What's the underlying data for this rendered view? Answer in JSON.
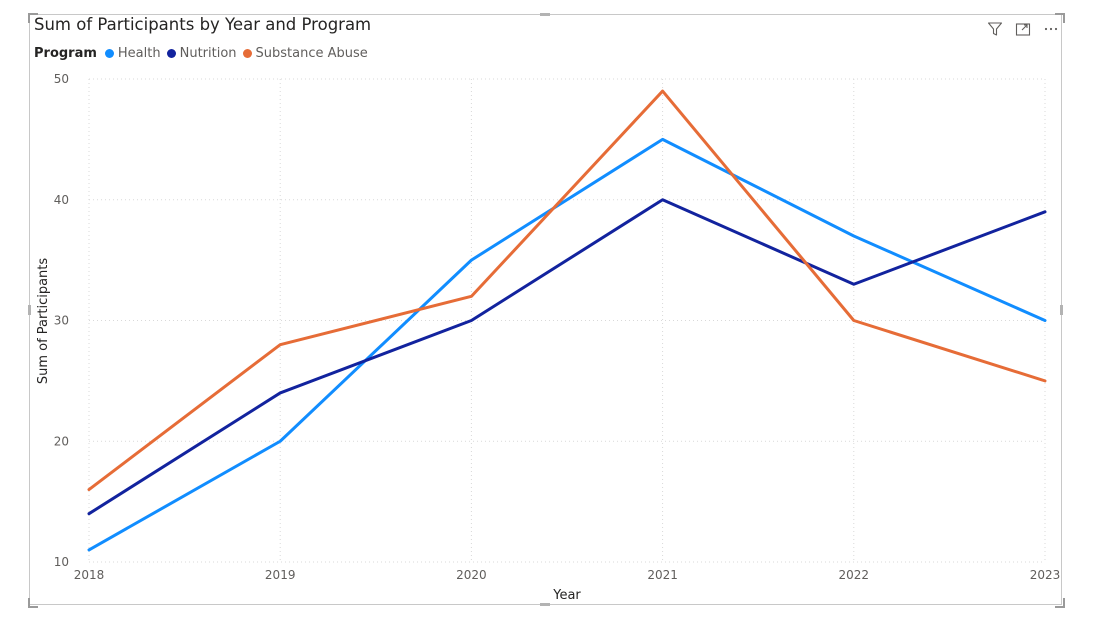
{
  "visual": {
    "title": "Sum of Participants by Year and Program",
    "legend_title": "Program",
    "header_icons": [
      "filter-icon",
      "focus-mode-icon",
      "more-options-icon"
    ]
  },
  "chart_data": {
    "type": "line",
    "title": "Sum of Participants by Year and Program",
    "xlabel": "Year",
    "ylabel": "Sum of Participants",
    "categories": [
      "2018",
      "2019",
      "2020",
      "2021",
      "2022",
      "2023"
    ],
    "ylim": [
      10,
      50
    ],
    "yticks": [
      10,
      20,
      30,
      40,
      50
    ],
    "grid": true,
    "legend_position": "top-left",
    "series": [
      {
        "name": "Health",
        "color": "#118DFF",
        "values": [
          11,
          20,
          35,
          45,
          37,
          30
        ]
      },
      {
        "name": "Nutrition",
        "color": "#12239E",
        "values": [
          14,
          24,
          30,
          40,
          33,
          39
        ]
      },
      {
        "name": "Substance Abuse",
        "color": "#E66C37",
        "values": [
          16,
          28,
          32,
          49,
          30,
          25
        ]
      }
    ]
  }
}
